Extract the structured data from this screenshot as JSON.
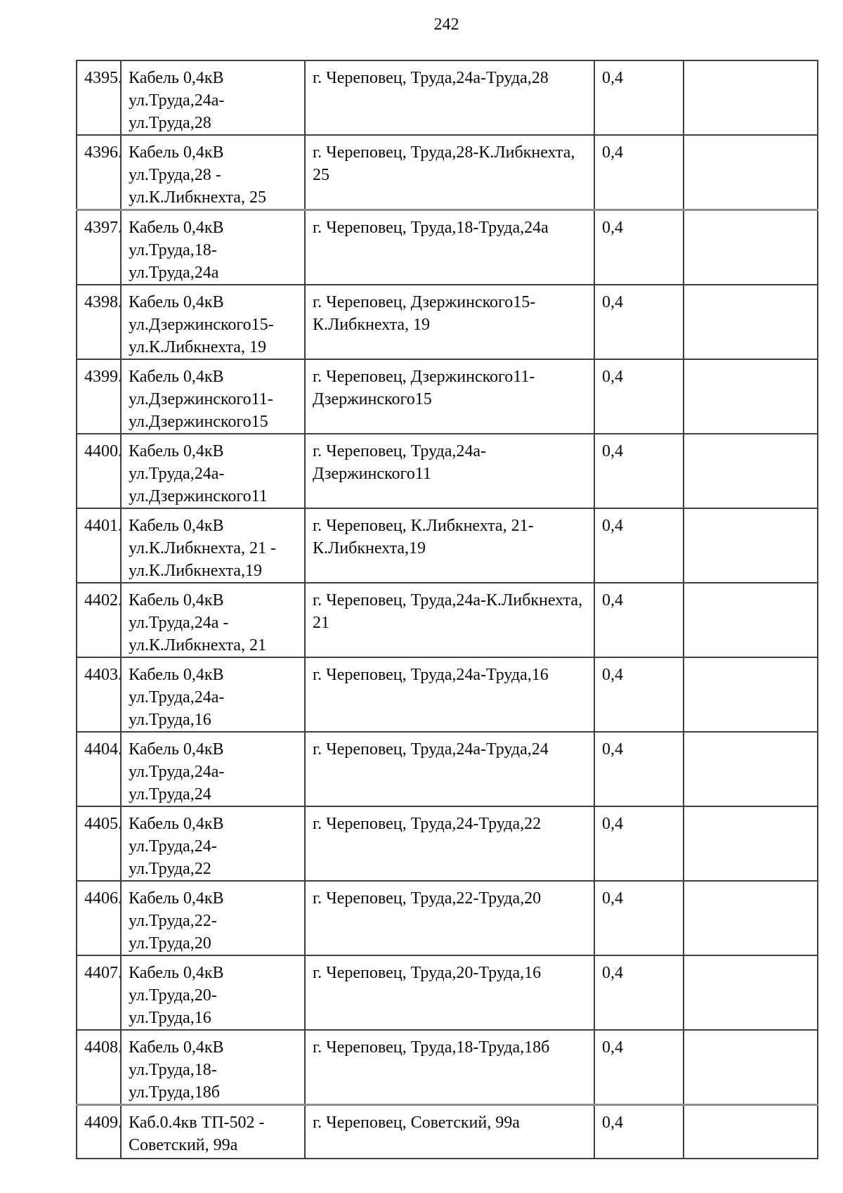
{
  "page": {
    "number": "242"
  },
  "table": {
    "rows": [
      {
        "num": "4395.",
        "name": "Кабель 0,4кВ\nул.Труда,24а-\nул.Труда,28",
        "address": "г. Череповец, Труда,24а-Труда,28",
        "voltage": "0,4",
        "note": ""
      },
      {
        "num": "4396.",
        "name": "Кабель 0,4кВ\nул.Труда,28 -\nул.К.Либкнехта, 25",
        "address": "г. Череповец, Труда,28-К.Либкнехта,\n25",
        "voltage": "0,4",
        "note": ""
      },
      {
        "num": "4397.",
        "name": "Кабель 0,4кВ\nул.Труда,18-\nул.Труда,24а",
        "address": "г. Череповец, Труда,18-Труда,24а",
        "voltage": "0,4",
        "note": ""
      },
      {
        "num": "4398.",
        "name": "Кабель 0,4кВ\nул.Дзержинского15-\nул.К.Либкнехта, 19",
        "address": "г. Череповец, Дзержинского15-\nК.Либкнехта, 19",
        "voltage": "0,4",
        "note": ""
      },
      {
        "num": "4399.",
        "name": "Кабель 0,4кВ\nул.Дзержинского11-\nул.Дзержинского15",
        "address": "г. Череповец, Дзержинского11-\nДзержинского15",
        "voltage": "0,4",
        "note": ""
      },
      {
        "num": "4400.",
        "name": "Кабель 0,4кВ\nул.Труда,24а-\nул.Дзержинского11",
        "address": "г. Череповец, Труда,24а-\nДзержинского11",
        "voltage": "0,4",
        "note": ""
      },
      {
        "num": "4401.",
        "name": "Кабель 0,4кВ\nул.К.Либкнехта, 21 -\nул.К.Либкнехта,19",
        "address": "г. Череповец, К.Либкнехта, 21-\nК.Либкнехта,19",
        "voltage": "0,4",
        "note": ""
      },
      {
        "num": "4402.",
        "name": "Кабель 0,4кВ\nул.Труда,24а -\nул.К.Либкнехта, 21",
        "address": "г. Череповец, Труда,24а-К.Либкнехта,\n21",
        "voltage": "0,4",
        "note": ""
      },
      {
        "num": "4403.",
        "name": "Кабель 0,4кВ\nул.Труда,24а-\nул.Труда,16",
        "address": "г. Череповец, Труда,24а-Труда,16",
        "voltage": "0,4",
        "note": ""
      },
      {
        "num": "4404.",
        "name": "Кабель 0,4кВ\nул.Труда,24а-\nул.Труда,24",
        "address": "г. Череповец, Труда,24а-Труда,24",
        "voltage": "0,4",
        "note": ""
      },
      {
        "num": "4405.",
        "name": "Кабель 0,4кВ\nул.Труда,24-\nул.Труда,22",
        "address": "г. Череповец, Труда,24-Труда,22",
        "voltage": "0,4",
        "note": ""
      },
      {
        "num": "4406.",
        "name": "Кабель 0,4кВ\nул.Труда,22-\nул.Труда,20",
        "address": "г. Череповец, Труда,22-Труда,20",
        "voltage": "0,4",
        "note": ""
      },
      {
        "num": "4407.",
        "name": "Кабель 0,4кВ\nул.Труда,20-\nул.Труда,16",
        "address": "г. Череповец, Труда,20-Труда,16",
        "voltage": "0,4",
        "note": ""
      },
      {
        "num": "4408.",
        "name": "Кабель 0,4кВ\nул.Труда,18-\nул.Труда,18б",
        "address": "г. Череповец, Труда,18-Труда,18б",
        "voltage": "0,4",
        "note": ""
      },
      {
        "num": "4409.",
        "name": "Каб.0.4кв ТП-502 -\nСоветский, 99а",
        "address": "г. Череповец, Советский, 99а",
        "voltage": "0,4",
        "note": ""
      }
    ]
  }
}
